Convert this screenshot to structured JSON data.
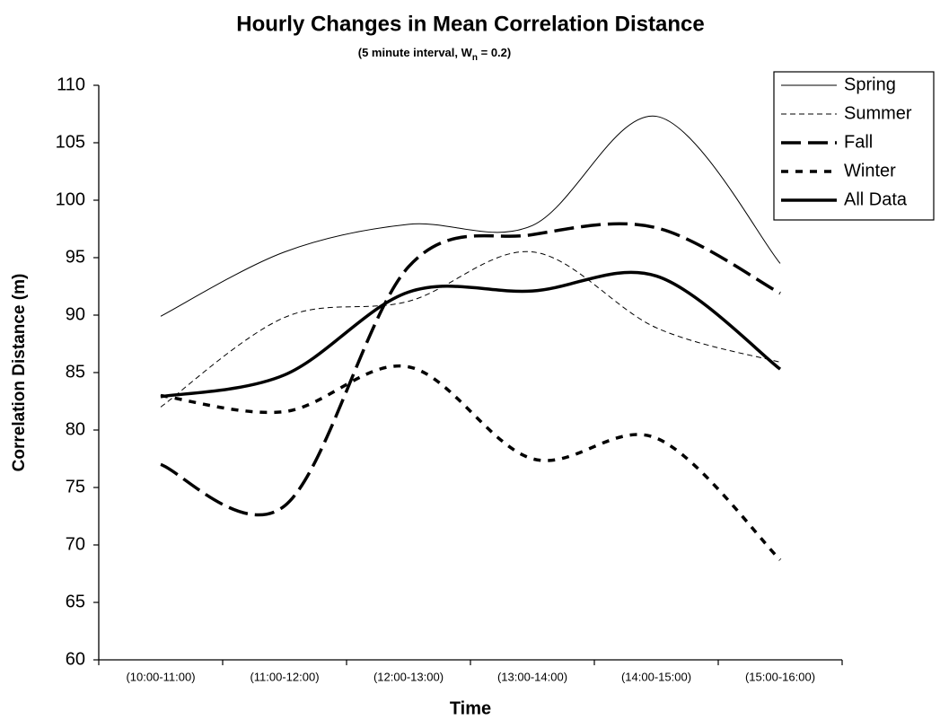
{
  "chart_data": {
    "type": "line",
    "title": "Hourly Changes in Mean Correlation Distance",
    "subtitle_parts": [
      "(5 minute interval, W",
      "n",
      " = 0.2)"
    ],
    "x_label": "Time",
    "y_label": "Correlation Distance (m)",
    "categories": [
      "(10:00-11:00)",
      "(11:00-12:00)",
      "(12:00-13:00)",
      "(13:00-14:00)",
      "(14:00-15:00)",
      "(15:00-16:00)"
    ],
    "ylim": [
      60,
      110
    ],
    "yticks": [
      60,
      65,
      70,
      75,
      80,
      85,
      90,
      95,
      100,
      105,
      110
    ],
    "legend": "top-right",
    "series": [
      {
        "name": "Spring",
        "color": "#000000",
        "width": 1,
        "dash": "",
        "values": [
          89.9,
          95.5,
          97.9,
          97.8,
          107.3,
          94.5
        ]
      },
      {
        "name": "Summer",
        "color": "#000000",
        "width": 1,
        "dash": "6 4",
        "values": [
          82.0,
          89.8,
          91.2,
          95.5,
          88.9,
          85.9
        ]
      },
      {
        "name": "Fall",
        "color": "#000000",
        "width": 3.5,
        "dash": "22 8",
        "values": [
          77.0,
          73.4,
          94.2,
          97.0,
          97.6,
          91.9
        ]
      },
      {
        "name": "Winter",
        "color": "#000000",
        "width": 3.5,
        "dash": "8 8",
        "values": [
          83.0,
          81.6,
          85.5,
          77.5,
          79.3,
          68.7
        ]
      },
      {
        "name": "All Data",
        "color": "#000000",
        "width": 3.5,
        "dash": "",
        "values": [
          82.9,
          84.8,
          92.0,
          92.1,
          93.4,
          85.3
        ]
      }
    ]
  }
}
